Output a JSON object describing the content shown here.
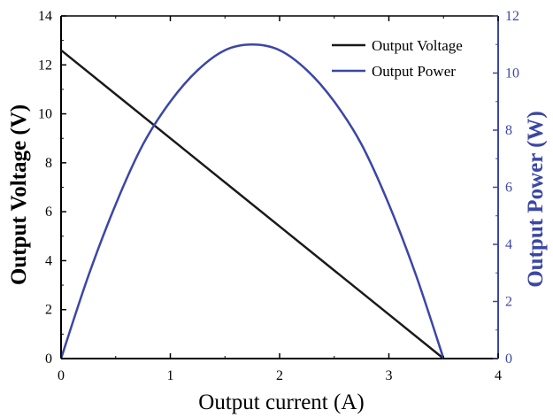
{
  "chart_data": {
    "type": "line",
    "xlabel": "Output current (A)",
    "ylabel_left": "Output Voltage (V)",
    "ylabel_right": "Output Power (W)",
    "xlim": [
      0,
      4
    ],
    "ylim_left": [
      0,
      14
    ],
    "ylim_right": [
      0,
      12
    ],
    "x_ticks": [
      0,
      1,
      2,
      3,
      4
    ],
    "y_ticks_left": [
      0,
      2,
      4,
      6,
      8,
      10,
      12,
      14
    ],
    "y_ticks_right": [
      0,
      2,
      4,
      6,
      8,
      10,
      12
    ],
    "grid": false,
    "legend_position": "top-right",
    "colors": {
      "voltage": "#1a1a1a",
      "power": "#3b46a6"
    },
    "series": [
      {
        "name": "Output Voltage",
        "axis": "left",
        "x": [
          0,
          0.5,
          1.0,
          1.5,
          2.0,
          2.5,
          3.0,
          3.5
        ],
        "values": [
          12.6,
          10.8,
          9.0,
          7.2,
          5.4,
          3.6,
          1.8,
          0.0
        ]
      },
      {
        "name": "Output Power",
        "axis": "right",
        "x": [
          0,
          0.25,
          0.5,
          0.75,
          1.0,
          1.25,
          1.5,
          1.75,
          2.0,
          2.25,
          2.5,
          2.75,
          3.0,
          3.25,
          3.5
        ],
        "values": [
          0,
          2.9,
          5.4,
          7.5,
          9.0,
          10.1,
          10.8,
          11.0,
          10.8,
          10.1,
          9.0,
          7.5,
          5.4,
          2.9,
          0
        ]
      }
    ]
  }
}
